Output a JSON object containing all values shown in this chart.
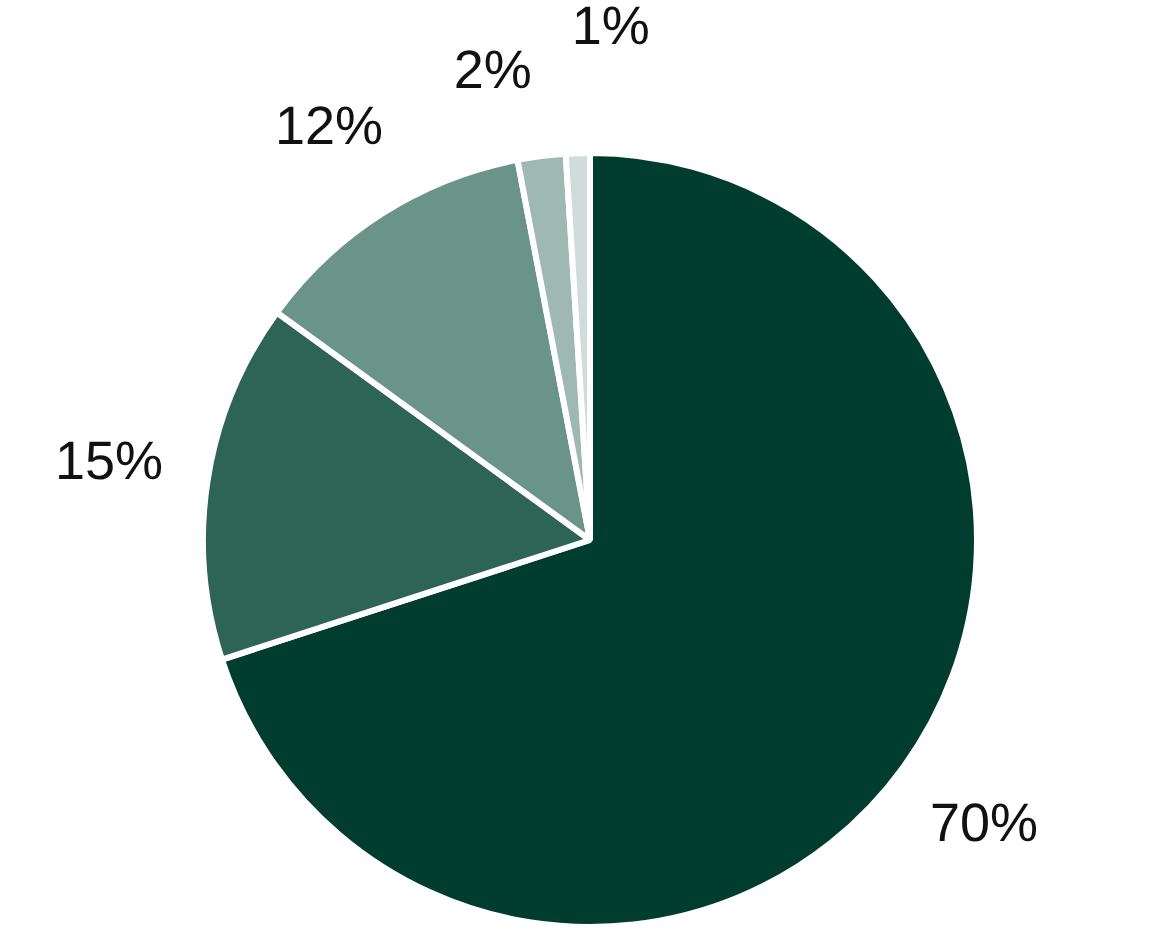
{
  "chart_data": {
    "type": "pie",
    "categories": [
      null,
      null,
      null,
      null,
      null
    ],
    "values": [
      70,
      15,
      12,
      2,
      1
    ],
    "colors": [
      "#003d2e",
      "#2e6455",
      "#6a9487",
      "#9fb8b1",
      "#cfdcd9"
    ],
    "value_labels": [
      "70%",
      "15%",
      "12%",
      "2%",
      "1%"
    ],
    "legend": false
  }
}
